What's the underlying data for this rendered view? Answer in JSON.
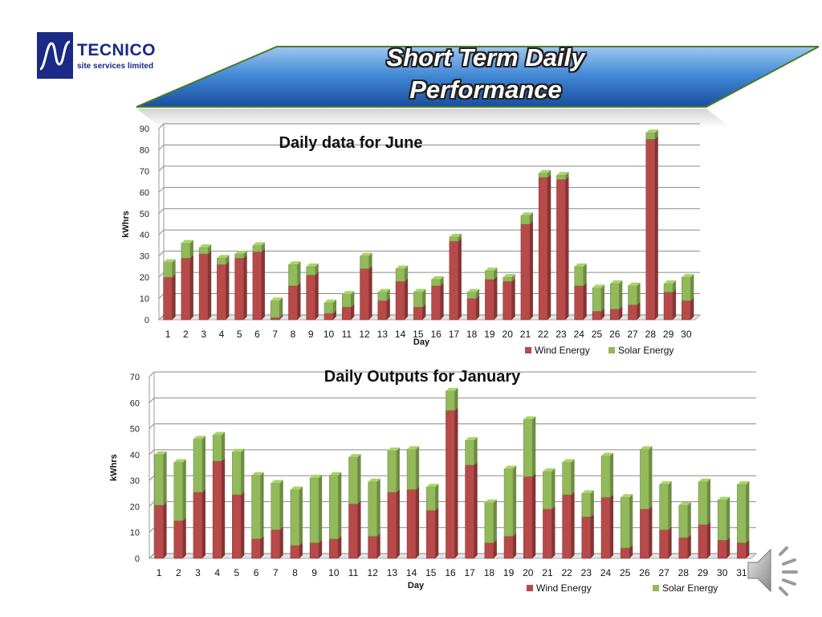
{
  "logo": {
    "name": "TECNICO",
    "sub1": "site services",
    "sub2": "limited"
  },
  "header": {
    "title_line1": "Short Term Daily",
    "title_line2": "Performance"
  },
  "colors": {
    "wind": "#b84a4a",
    "solar": "#92b95a",
    "grid": "#8a8a8a",
    "banner": "#2a62b5"
  },
  "speaker_icon": "speaker-sound-icon",
  "chart_data": [
    {
      "type": "bar",
      "stacked": true,
      "title": "Daily data for June",
      "xlabel": "Day",
      "ylabel": "kWhrs",
      "ylim": [
        0,
        90
      ],
      "yticks": [
        0,
        10,
        20,
        30,
        40,
        50,
        60,
        70,
        80,
        90
      ],
      "grid": true,
      "legend": "bottom-right",
      "categories": [
        "1",
        "2",
        "3",
        "4",
        "5",
        "6",
        "7",
        "8",
        "9",
        "10",
        "11",
        "12",
        "13",
        "14",
        "15",
        "16",
        "17",
        "18",
        "19",
        "20",
        "21",
        "22",
        "23",
        "24",
        "25",
        "26",
        "27",
        "28",
        "29",
        "30"
      ],
      "series": [
        {
          "name": "Wind Energy",
          "color": "#b84a4a",
          "values": [
            20,
            29,
            31,
            26,
            29,
            32,
            1,
            16,
            21,
            3,
            6,
            24,
            9,
            18,
            6,
            16,
            37,
            10,
            19,
            18,
            45,
            67,
            66,
            16,
            4,
            5,
            7,
            85,
            13,
            9
          ]
        },
        {
          "name": "Solar Energy",
          "color": "#92b95a",
          "values": [
            7,
            7,
            3,
            3,
            2,
            3,
            8,
            10,
            4,
            5,
            6,
            6,
            4,
            6,
            7,
            3,
            2,
            3,
            4,
            2,
            4,
            2,
            2,
            9,
            11,
            12,
            9,
            3,
            4,
            11
          ]
        }
      ]
    },
    {
      "type": "bar",
      "stacked": true,
      "title": "Daily Outputs for January",
      "xlabel": "Day",
      "ylabel": "kWhrs",
      "ylim": [
        0,
        70
      ],
      "yticks": [
        0,
        10,
        20,
        30,
        40,
        50,
        60,
        70
      ],
      "grid": true,
      "legend": "bottom-right",
      "categories": [
        "1",
        "2",
        "3",
        "4",
        "5",
        "6",
        "7",
        "8",
        "9",
        "10",
        "11",
        "12",
        "13",
        "14",
        "15",
        "16",
        "17",
        "18",
        "19",
        "20",
        "21",
        "22",
        "23",
        "24",
        "25",
        "26",
        "27",
        "28",
        "29",
        "30",
        "31"
      ],
      "series": [
        {
          "name": "Wind Energy",
          "color": "#b84a4a",
          "values": [
            20.5,
            14.5,
            25.5,
            37.5,
            24.5,
            7.5,
            11,
            5,
            6,
            7.5,
            21,
            8.5,
            25.5,
            26.5,
            18.5,
            57,
            36,
            6,
            8.5,
            31.5,
            19,
            24.5,
            16,
            23.5,
            4,
            19,
            11,
            8,
            13,
            7,
            6
          ]
        },
        {
          "name": "Solar Energy",
          "color": "#92b95a",
          "values": [
            19.5,
            22.5,
            20.5,
            10,
            16.5,
            24.5,
            18,
            21.5,
            25,
            24.5,
            18,
            21,
            16,
            15.5,
            9,
            7.5,
            9.5,
            15.5,
            26,
            22,
            14.5,
            12.5,
            9,
            16,
            19.5,
            23,
            17.5,
            12.5,
            16.5,
            15.5,
            22.5
          ]
        }
      ]
    }
  ]
}
